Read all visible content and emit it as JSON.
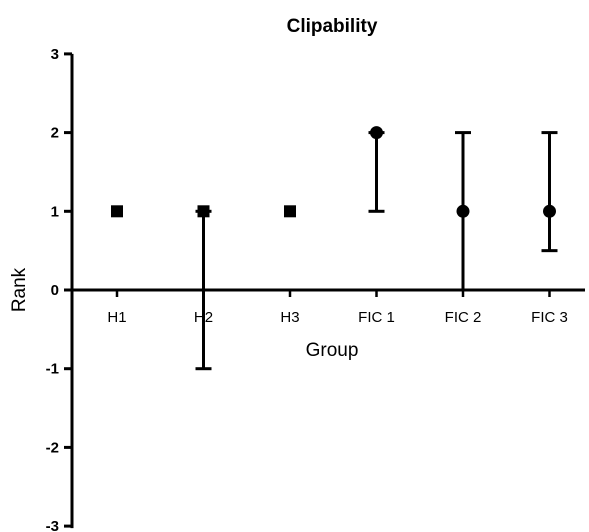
{
  "chart_data": {
    "type": "scatter",
    "title": "Clipability",
    "xlabel": "Group",
    "ylabel": "Rank",
    "ylim": [
      -3,
      3
    ],
    "yticks": [
      "3",
      "2",
      "1",
      "0",
      "-1",
      "-2",
      "-3"
    ],
    "categories": [
      "H1",
      "H2",
      "H3",
      "FIC 1",
      "FIC 2",
      "FIC 3"
    ],
    "series": [
      {
        "marker": "square",
        "color": "#000000",
        "points": [
          {
            "x": "H1",
            "y": 1
          },
          {
            "x": "H2",
            "y": 1,
            "error_low": -1,
            "error_high": 1
          },
          {
            "x": "H3",
            "y": 1
          }
        ]
      },
      {
        "marker": "circle",
        "color": "#000000",
        "points": [
          {
            "x": "FIC 1",
            "y": 2,
            "error_low": 1,
            "error_high": 2
          },
          {
            "x": "FIC 2",
            "y": 1,
            "error_low": 0,
            "error_high": 2
          },
          {
            "x": "FIC 3",
            "y": 1,
            "error_low": 0.5,
            "error_high": 2
          }
        ]
      }
    ],
    "grid": false,
    "legend": "none"
  }
}
